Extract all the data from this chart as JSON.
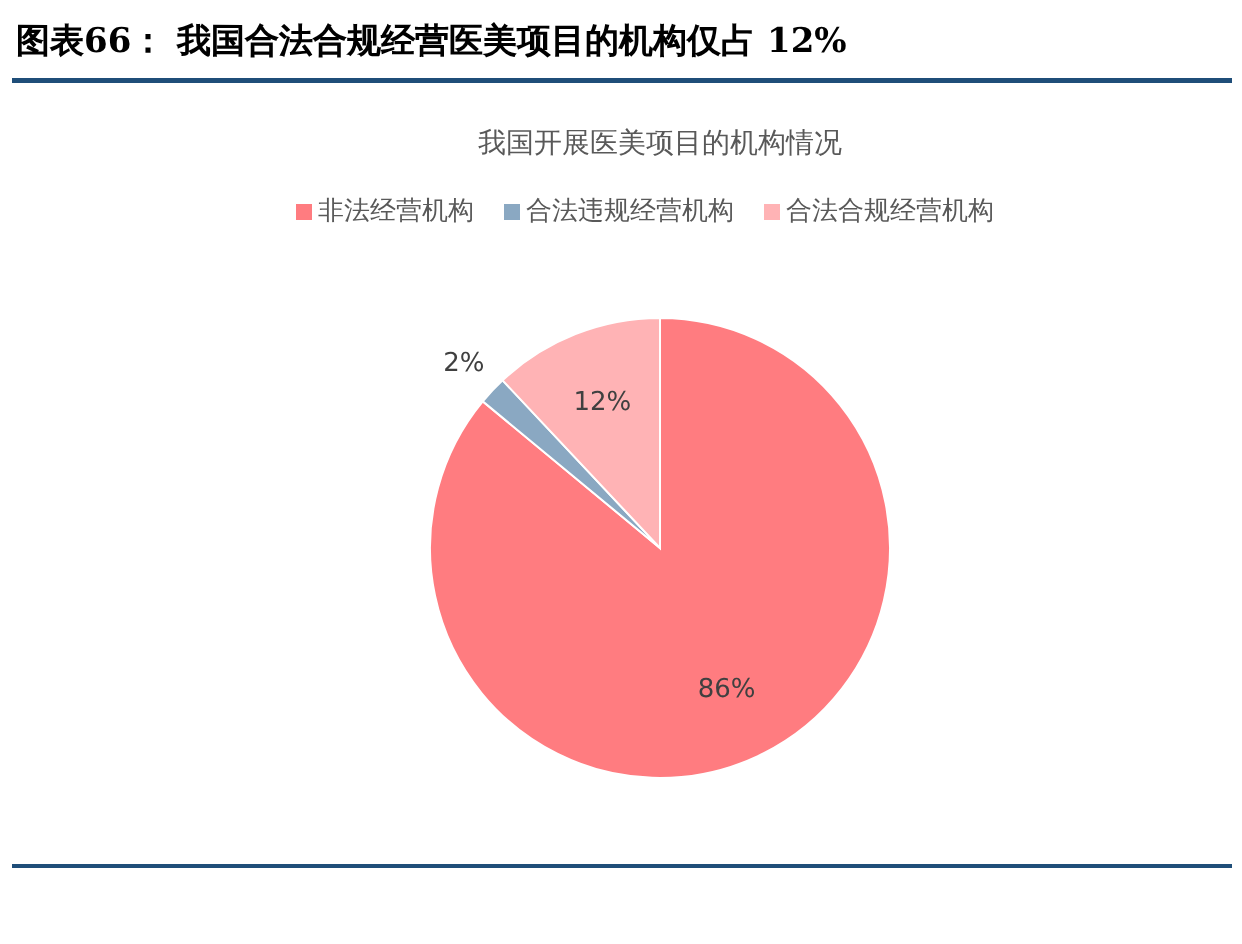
{
  "chart_data": {
    "type": "pie",
    "title": "图表66： 我国合法合规经营医美项目的机构仅占 12%",
    "subtitle": "我国开展医美项目的机构情况",
    "categories": [
      "非法经营机构",
      "合法违规经营机构",
      "合法合规经营机构"
    ],
    "values": [
      86,
      2,
      12
    ],
    "colors": [
      "#ff7c80",
      "#8aa8c2",
      "#ffb3b5"
    ],
    "value_labels": [
      "86%",
      "2%",
      "12%"
    ],
    "legend": "top"
  }
}
